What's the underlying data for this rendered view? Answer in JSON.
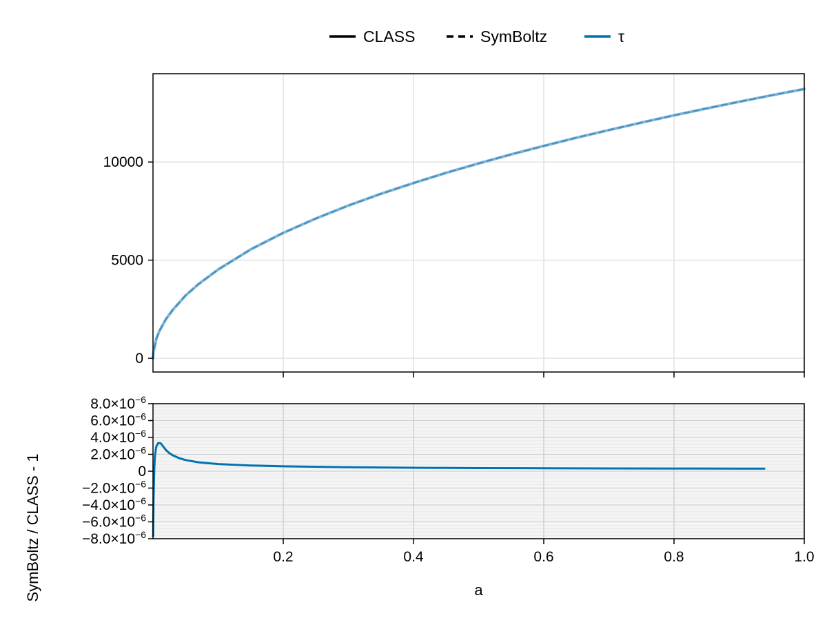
{
  "chart_data": [
    {
      "type": "line",
      "panel": "top",
      "xlim": [
        0,
        1.0
      ],
      "ylim": [
        -700,
        14500
      ],
      "xticks": [
        0.2,
        0.4,
        0.6,
        0.8,
        1.0
      ],
      "yticks": [
        0,
        5000,
        10000
      ],
      "ytick_labels": [
        "0",
        "5000",
        "10000"
      ],
      "grid": true,
      "legend_position": "top-center",
      "legend": [
        {
          "label": "CLASS",
          "style": "solid",
          "color": "#000000"
        },
        {
          "label": "SymBoltz",
          "style": "dashed",
          "color": "#000000"
        },
        {
          "label": "τ",
          "style": "solid",
          "color": "#0072B2"
        }
      ],
      "series": [
        {
          "name": "CLASS",
          "color": "#7FB8D9",
          "style": "solid",
          "x": [
            0.0005,
            0.005,
            0.01,
            0.02,
            0.03,
            0.05,
            0.07,
            0.1,
            0.15,
            0.2,
            0.25,
            0.3,
            0.35,
            0.4,
            0.45,
            0.5,
            0.55,
            0.6,
            0.65,
            0.7,
            0.75,
            0.8,
            0.85,
            0.9,
            0.95,
            1.0
          ],
          "y": [
            280,
            980,
            1400,
            2000,
            2450,
            3200,
            3780,
            4520,
            5550,
            6390,
            7120,
            7780,
            8380,
            8930,
            9450,
            9930,
            10390,
            10820,
            11240,
            11630,
            12010,
            12380,
            12730,
            13070,
            13400,
            13720
          ]
        },
        {
          "name": "SymBoltz",
          "color": "#4A8FBF",
          "style": "dashed",
          "x": [
            0.0005,
            0.005,
            0.01,
            0.02,
            0.03,
            0.05,
            0.07,
            0.1,
            0.15,
            0.2,
            0.25,
            0.3,
            0.35,
            0.4,
            0.45,
            0.5,
            0.55,
            0.6,
            0.65,
            0.7,
            0.75,
            0.8,
            0.85,
            0.9,
            0.95,
            1.0
          ],
          "y": [
            280,
            980,
            1400,
            2000,
            2450,
            3200,
            3780,
            4520,
            5550,
            6390,
            7120,
            7780,
            8380,
            8930,
            9450,
            9930,
            10390,
            10820,
            11240,
            11630,
            12010,
            12380,
            12730,
            13070,
            13400,
            13720
          ]
        }
      ]
    },
    {
      "type": "line",
      "panel": "bottom",
      "xlabel": "a",
      "ylabel": "SymBoltz / CLASS - 1",
      "xlim": [
        0,
        1.0
      ],
      "ylim": [
        -8e-06,
        8e-06
      ],
      "xticks": [
        0.2,
        0.4,
        0.6,
        0.8,
        1.0
      ],
      "xtick_labels": [
        "0.2",
        "0.4",
        "0.6",
        "0.8",
        "1.0"
      ],
      "yticks": [
        -8e-06,
        -6e-06,
        -4e-06,
        -2e-06,
        0,
        2e-06,
        4e-06,
        6e-06,
        8e-06
      ],
      "ytick_labels": [
        {
          "mant": "−8.0×10",
          "exp": "−6"
        },
        {
          "mant": "−6.0×10",
          "exp": "−6"
        },
        {
          "mant": "−4.0×10",
          "exp": "−6"
        },
        {
          "mant": "−2.0×10",
          "exp": "−6"
        },
        {
          "mant": "0",
          "exp": ""
        },
        {
          "mant": "2.0×10",
          "exp": "−6"
        },
        {
          "mant": "4.0×10",
          "exp": "−6"
        },
        {
          "mant": "6.0×10",
          "exp": "−6"
        },
        {
          "mant": "8.0×10",
          "exp": "−6"
        }
      ],
      "grid": true,
      "series": [
        {
          "name": "τ",
          "color": "#0072B2",
          "style": "solid",
          "x": [
            0.0002,
            0.001,
            0.002,
            0.003,
            0.005,
            0.008,
            0.012,
            0.016,
            0.02,
            0.025,
            0.03,
            0.04,
            0.05,
            0.07,
            0.1,
            0.15,
            0.2,
            0.3,
            0.4,
            0.5,
            0.6,
            0.7,
            0.8,
            0.9,
            0.94
          ],
          "y": [
            -7.8e-06,
            -3e-06,
            3e-07,
            1.8e-06,
            2.9e-06,
            3.35e-06,
            3.3e-06,
            2.9e-06,
            2.5e-06,
            2.15e-06,
            1.9e-06,
            1.55e-06,
            1.32e-06,
            1.05e-06,
            8.5e-07,
            6.8e-07,
            5.8e-07,
            4.7e-07,
            4.1e-07,
            3.7e-07,
            3.5e-07,
            3.3e-07,
            3.2e-07,
            3.1e-07,
            3e-07
          ]
        }
      ]
    }
  ]
}
